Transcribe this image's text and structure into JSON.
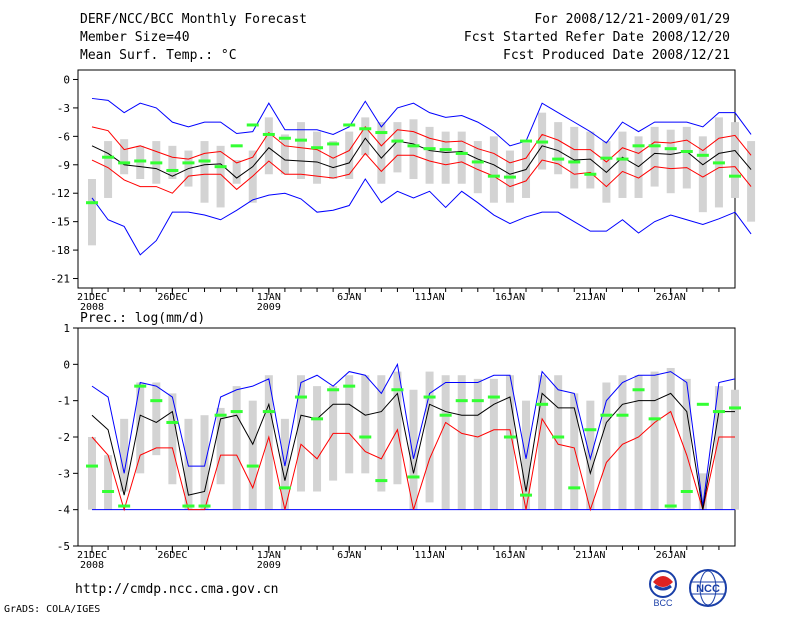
{
  "header": {
    "title": "DERF/NCC/BCC Monthly Forecast",
    "member_size": "Member Size=40",
    "variable": "Mean Surf. Temp.: °C",
    "period": "For 2008/12/21-2009/01/29",
    "started": "Fcst Started Refer Date 2008/12/20",
    "produced": "Fcst Produced Date 2008/12/21"
  },
  "footer": {
    "url": "http://cmdp.ncc.cma.gov.cn",
    "grads": "GrADS: COLA/IGES",
    "logo_bcc": "BCC",
    "logo_ncc": "NCC"
  },
  "colors": {
    "max_min": "#0000ff",
    "spread": "#ff0000",
    "mean": "#000000",
    "box": "#d3d3d3",
    "obs": "#33ff33"
  },
  "chart_data": [
    {
      "type": "line",
      "title": "Mean Surf. Temp.: °C",
      "ylim": [
        -22,
        1
      ],
      "yticks": [
        0,
        -3,
        -6,
        -9,
        -12,
        -15,
        -18,
        -21
      ],
      "xlabels": [
        {
          "day": 0,
          "text": "21DEC",
          "sub": "2008"
        },
        {
          "day": 5,
          "text": "26DEC",
          "sub": ""
        },
        {
          "day": 11,
          "text": "1JAN",
          "sub": "2009"
        },
        {
          "day": 16,
          "text": "6JAN",
          "sub": ""
        },
        {
          "day": 21,
          "text": "11JAN",
          "sub": ""
        },
        {
          "day": 26,
          "text": "16JAN",
          "sub": ""
        },
        {
          "day": 31,
          "text": "21JAN",
          "sub": ""
        },
        {
          "day": 36,
          "text": "26JAN",
          "sub": ""
        }
      ],
      "days": 40,
      "series": {
        "max": [
          -2,
          -2.2,
          -3.5,
          -2.5,
          -3,
          -4.5,
          -5,
          -4.5,
          -4.5,
          -5.7,
          -5.5,
          -2.5,
          -5.3,
          -5.3,
          -5.3,
          -5.8,
          -5,
          -2.3,
          -5,
          -3,
          -2.5,
          -3.5,
          -4,
          -3.8,
          -4.5,
          -5.5,
          -7,
          -6.5,
          -2.5,
          -3.5,
          -4.5,
          -5.5,
          -6.7,
          -4.5,
          -5.5,
          -4.5,
          -4.5,
          -4.5,
          -5,
          -3.5,
          -3.5,
          -5.8
        ],
        "upper": [
          -5,
          -5.4,
          -7.4,
          -7,
          -7.6,
          -8.2,
          -8.4,
          -7.8,
          -7.6,
          -8.8,
          -8.2,
          -5.6,
          -7,
          -7.2,
          -7.4,
          -8.3,
          -7.5,
          -5,
          -7,
          -5.3,
          -5.5,
          -6.2,
          -6.6,
          -6.5,
          -7.3,
          -7.8,
          -8.8,
          -8.3,
          -5.8,
          -6.4,
          -7.4,
          -7.4,
          -8.7,
          -7.2,
          -7.8,
          -6.6,
          -6.7,
          -6.4,
          -7.5,
          -6.2,
          -5.9,
          -8
        ],
        "mean": [
          -7,
          -7.8,
          -9,
          -9.2,
          -9.4,
          -10.2,
          -9.4,
          -9,
          -8.9,
          -10.4,
          -9.2,
          -7.2,
          -8.5,
          -8.6,
          -8.7,
          -9.3,
          -8.8,
          -6.2,
          -8.3,
          -6.5,
          -6.8,
          -7.5,
          -7.7,
          -7.6,
          -8.4,
          -9,
          -10,
          -9.5,
          -7,
          -7.5,
          -8.5,
          -8.4,
          -9.8,
          -8.2,
          -9.2,
          -7.8,
          -7.9,
          -7.6,
          -9,
          -7.8,
          -7.5,
          -9.5
        ],
        "lower": [
          -8.5,
          -9.3,
          -10.6,
          -11.3,
          -11.3,
          -12,
          -10.2,
          -10,
          -10,
          -11.6,
          -10.2,
          -8.6,
          -10,
          -10,
          -10.2,
          -10.4,
          -10,
          -7.8,
          -9.7,
          -8,
          -8,
          -8.6,
          -9,
          -8.7,
          -9.5,
          -10.2,
          -11.3,
          -10.7,
          -8.5,
          -8.9,
          -10,
          -9.8,
          -11.3,
          -9.7,
          -10.4,
          -9.2,
          -9.4,
          -9.3,
          -10.3,
          -9.3,
          -9.2,
          -11.3
        ],
        "min": [
          -12.5,
          -14.8,
          -15.5,
          -18.5,
          -17,
          -14,
          -14,
          -14.3,
          -14.8,
          -13.8,
          -12.7,
          -12.2,
          -12,
          -12.6,
          -14,
          -13.8,
          -13.3,
          -10.5,
          -13,
          -11.8,
          -12.5,
          -11.8,
          -13.5,
          -11.8,
          -13,
          -14.3,
          -15.2,
          -14.5,
          -14,
          -14,
          -15,
          -16,
          -16,
          -14.8,
          -16.2,
          -15,
          -14.3,
          -14.8,
          -15.3,
          -14.7,
          -14,
          -16.3
        ]
      },
      "boxes": [
        [
          -10.5,
          -17.5
        ],
        [
          -6.5,
          -12.5
        ],
        [
          -6.3,
          -10
        ],
        [
          -7,
          -10.5
        ],
        [
          -6.5,
          -11
        ],
        [
          -7,
          -10.5
        ],
        [
          -7.5,
          -11.3
        ],
        [
          -6.5,
          -13
        ],
        [
          -7,
          -13.5
        ],
        [
          -8.5,
          -11
        ],
        [
          -7.5,
          -13
        ],
        [
          -4,
          -10
        ],
        [
          -5.8,
          -10
        ],
        [
          -4.5,
          -10.5
        ],
        [
          -5.5,
          -11
        ],
        [
          -6.5,
          -10.5
        ],
        [
          -5.5,
          -10.5
        ],
        [
          -4,
          -8
        ],
        [
          -4.5,
          -11
        ],
        [
          -4.5,
          -9.8
        ],
        [
          -4.2,
          -10.5
        ],
        [
          -5,
          -11
        ],
        [
          -5.5,
          -11
        ],
        [
          -5.5,
          -11
        ],
        [
          -6.5,
          -12
        ],
        [
          -6,
          -13
        ],
        [
          -7.5,
          -13
        ],
        [
          -6.7,
          -12.5
        ],
        [
          -3.5,
          -9.5
        ],
        [
          -4.5,
          -10
        ],
        [
          -5,
          -11.5
        ],
        [
          -5.5,
          -11.5
        ],
        [
          -6.5,
          -13
        ],
        [
          -5.5,
          -12.5
        ],
        [
          -6,
          -12.5
        ],
        [
          -5,
          -11.3
        ],
        [
          -5.3,
          -12
        ],
        [
          -5,
          -11.5
        ],
        [
          -6,
          -14
        ],
        [
          -4,
          -13.5
        ],
        [
          -4.5,
          -12.5
        ],
        [
          -6.5,
          -15
        ]
      ],
      "obs": [
        -13,
        -8.2,
        -8.8,
        -8.6,
        -8.8,
        -9.6,
        -8.8,
        -8.6,
        -9.2,
        -7,
        -4.8,
        -5.8,
        -6.2,
        -6.4,
        -7.2,
        -6.8,
        -4.8,
        -5.2,
        -5.6,
        -6.5,
        -7,
        -7.3,
        -7.4,
        -7.8,
        -8.7,
        -10.2,
        -10.3,
        -6.5,
        -6.6,
        -8.4,
        -8.7,
        -10,
        -8.3,
        -8.4,
        -7,
        -7,
        -7.3,
        -7.6,
        -8,
        -8.8,
        -10.2
      ]
    },
    {
      "type": "line",
      "title": "Prec.: log(mm/d)",
      "ylim": [
        -5,
        1
      ],
      "yticks": [
        1,
        0,
        -1,
        -2,
        -3,
        -4,
        -5
      ],
      "days": 40,
      "xlabels": [
        {
          "day": 0,
          "text": "21DEC",
          "sub": "2008"
        },
        {
          "day": 5,
          "text": "26DEC",
          "sub": ""
        },
        {
          "day": 11,
          "text": "1JAN",
          "sub": "2009"
        },
        {
          "day": 16,
          "text": "6JAN",
          "sub": ""
        },
        {
          "day": 21,
          "text": "11JAN",
          "sub": ""
        },
        {
          "day": 26,
          "text": "16JAN",
          "sub": ""
        },
        {
          "day": 31,
          "text": "21JAN",
          "sub": ""
        },
        {
          "day": 36,
          "text": "26JAN",
          "sub": ""
        }
      ],
      "series": {
        "max": [
          -0.6,
          -0.9,
          -3,
          -0.5,
          -0.6,
          -0.9,
          -2.8,
          -2.8,
          -0.9,
          -0.7,
          -0.6,
          -0.4,
          -2.8,
          -0.5,
          -0.3,
          -0.6,
          -0.2,
          -0.3,
          -0.8,
          0,
          -2.6,
          -0.8,
          -0.5,
          -0.5,
          -0.5,
          -0.3,
          -0.3,
          -2.6,
          -0.2,
          -0.7,
          -0.8,
          -2.6,
          -1,
          -0.5,
          -0.3,
          -0.3,
          -0.2,
          -0.5,
          -3.9,
          -0.5,
          -0.4
        ],
        "mean": [
          -1.4,
          -1.8,
          -3.6,
          -1.4,
          -1.6,
          -1.3,
          -3.6,
          -3.5,
          -1.5,
          -1.4,
          -2.2,
          -1.1,
          -3.2,
          -1.4,
          -1.5,
          -1.1,
          -1.1,
          -1.4,
          -1.3,
          -0.8,
          -3,
          -1.1,
          -1.3,
          -1.4,
          -1.4,
          -1.1,
          -0.9,
          -3.5,
          -0.8,
          -1.2,
          -1.2,
          -3,
          -1.6,
          -1.1,
          -1,
          -1,
          -0.8,
          -1.3,
          -4,
          -1.3,
          -1.3
        ],
        "lower": [
          -2,
          -2.5,
          -4,
          -2.5,
          -2.3,
          -2.3,
          -4,
          -4,
          -2.5,
          -2.5,
          -3.4,
          -2,
          -4,
          -2.2,
          -2.6,
          -1.9,
          -1.9,
          -2.4,
          -2.6,
          -1.8,
          -4,
          -2.6,
          -1.6,
          -1.9,
          -2,
          -1.8,
          -1.8,
          -4,
          -1.5,
          -2.2,
          -2.3,
          -4,
          -2.7,
          -2.2,
          -2,
          -1.6,
          -1.3,
          -2.5,
          -4,
          -2,
          -2
        ],
        "min": [
          -4,
          -4,
          -4,
          -4,
          -4,
          -4,
          -4,
          -4,
          -4,
          -4,
          -4,
          -4,
          -4,
          -4,
          -4,
          -4,
          -4,
          -4,
          -4,
          -4,
          -4,
          -4,
          -4,
          -4,
          -4,
          -4,
          -4,
          -4,
          -4,
          -4,
          -4,
          -4,
          -4,
          -4,
          -4,
          -4,
          -4,
          -4,
          -4,
          -4,
          -4
        ]
      },
      "boxes": [
        [
          -2,
          -4
        ],
        [
          -2.5,
          -4
        ],
        [
          -1.5,
          -3.5
        ],
        [
          -0.5,
          -3
        ],
        [
          -0.5,
          -2.5
        ],
        [
          -0.8,
          -3.3
        ],
        [
          -1.5,
          -4
        ],
        [
          -1.4,
          -4
        ],
        [
          -1.2,
          -3.3
        ],
        [
          -0.6,
          -4
        ],
        [
          -1,
          -4
        ],
        [
          -0.3,
          -4
        ],
        [
          -1.5,
          -4
        ],
        [
          -0.3,
          -3.5
        ],
        [
          -0.6,
          -3.5
        ],
        [
          -0.6,
          -3.2
        ],
        [
          -0.3,
          -3
        ],
        [
          -0.3,
          -3
        ],
        [
          -0.3,
          -3.5
        ],
        [
          -0.2,
          -3.3
        ],
        [
          -0.7,
          -4
        ],
        [
          -0.2,
          -3.8
        ],
        [
          -0.3,
          -4
        ],
        [
          -0.3,
          -4
        ],
        [
          -0.4,
          -4
        ],
        [
          -0.4,
          -4
        ],
        [
          -0.3,
          -4
        ],
        [
          -1,
          -4
        ],
        [
          -0.3,
          -4
        ],
        [
          -0.3,
          -4
        ],
        [
          -0.8,
          -4
        ],
        [
          -1,
          -4
        ],
        [
          -0.5,
          -4
        ],
        [
          -0.3,
          -4
        ],
        [
          -0.3,
          -4
        ],
        [
          -0.2,
          -4
        ],
        [
          -0.1,
          -4
        ],
        [
          -0.4,
          -4
        ],
        [
          -3,
          -4
        ],
        [
          -0.6,
          -4
        ],
        [
          -0.7,
          -4
        ]
      ],
      "obs": [
        -2.8,
        -3.5,
        -3.9,
        -0.6,
        -1,
        -1.6,
        -3.9,
        -3.9,
        -1.4,
        -1.3,
        -2.8,
        -1.3,
        -3.4,
        -0.9,
        -1.5,
        -0.7,
        -0.6,
        -2,
        -3.2,
        -0.7,
        -3.1,
        -0.9,
        -1.4,
        -1,
        -1,
        -0.9,
        -2,
        -3.6,
        -1.1,
        -2,
        -3.4,
        -1.8,
        -1.4,
        -1.4,
        -0.7,
        -1.5,
        -3.9,
        -3.5,
        -1.1,
        -1.3,
        -1.2
      ]
    }
  ]
}
